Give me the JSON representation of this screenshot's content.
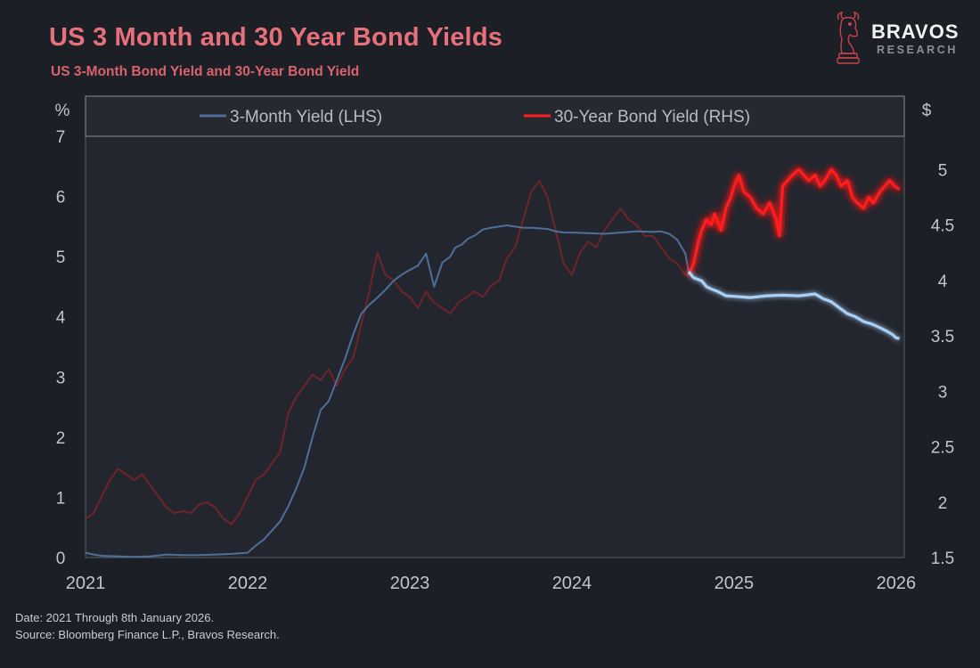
{
  "header": {
    "title": "US 3 Month and 30 Year Bond Yields",
    "subtitle": "US 3-Month Bond Yield and 30-Year Bond Yield"
  },
  "brand": {
    "name": "BRAVOS",
    "tagline": "RESEARCH",
    "logo_icon": "bull-chess-knight-icon"
  },
  "footer": {
    "date_line": "Date: 2021 Through 8th January 2026.",
    "source_line": "Source: Bloomberg Finance L.P., Bravos Research."
  },
  "colors": {
    "background": "#1c1f25",
    "plot_background": "#23262e",
    "three_month": "#4e6f9a",
    "three_month_highlight": "#a9d1f5",
    "thirty_year": "#6e2428",
    "thirty_year_highlight": "#ff1d1d",
    "title": "#e8707a"
  },
  "chart_data": {
    "type": "line",
    "title": "US 3 Month and 30 Year Bond Yields",
    "highlight_from": 2024.72,
    "x_axis": {
      "range": [
        2021,
        2026.05
      ],
      "ticks": [
        "2021",
        "2022",
        "2023",
        "2024",
        "2025",
        "2026"
      ]
    },
    "y_left": {
      "label": "%",
      "range": [
        0,
        7
      ],
      "ticks": [
        "0",
        "1",
        "2",
        "3",
        "4",
        "5",
        "6",
        "7"
      ]
    },
    "y_right": {
      "label": "$",
      "range": [
        1.5,
        5.3
      ],
      "ticks": [
        "1.5",
        "2",
        "2.5",
        "3",
        "3.5",
        "4",
        "4.5",
        "5"
      ]
    },
    "legend": {
      "position": "top",
      "entries": [
        "3-Month Yield (LHS)",
        "30-Year Bond Yield (RHS)"
      ]
    },
    "series": [
      {
        "name": "3-Month Yield (LHS)",
        "axis": "left",
        "x": [
          2021.0,
          2021.05,
          2021.1,
          2021.2,
          2021.3,
          2021.4,
          2021.5,
          2021.6,
          2021.7,
          2021.8,
          2021.9,
          2022.0,
          2022.05,
          2022.1,
          2022.15,
          2022.2,
          2022.25,
          2022.3,
          2022.35,
          2022.4,
          2022.45,
          2022.5,
          2022.55,
          2022.6,
          2022.65,
          2022.7,
          2022.75,
          2022.8,
          2022.85,
          2022.9,
          2022.95,
          2023.0,
          2023.05,
          2023.1,
          2023.15,
          2023.2,
          2023.25,
          2023.28,
          2023.32,
          2023.36,
          2023.4,
          2023.45,
          2023.5,
          2023.55,
          2023.6,
          2023.65,
          2023.7,
          2023.75,
          2023.8,
          2023.85,
          2023.9,
          2023.95,
          2024.0,
          2024.1,
          2024.2,
          2024.3,
          2024.4,
          2024.5,
          2024.55,
          2024.6,
          2024.65,
          2024.7,
          2024.72,
          2024.75,
          2024.8,
          2024.83,
          2024.87,
          2024.9,
          2024.95,
          2025.0,
          2025.1,
          2025.2,
          2025.3,
          2025.4,
          2025.5,
          2025.55,
          2025.6,
          2025.65,
          2025.7,
          2025.75,
          2025.8,
          2025.85,
          2025.9,
          2025.95,
          2025.98,
          2026.0,
          2026.02
        ],
        "values": [
          0.08,
          0.05,
          0.03,
          0.02,
          0.01,
          0.02,
          0.05,
          0.04,
          0.04,
          0.05,
          0.06,
          0.08,
          0.2,
          0.3,
          0.45,
          0.6,
          0.85,
          1.15,
          1.5,
          2.0,
          2.45,
          2.6,
          2.95,
          3.3,
          3.7,
          4.05,
          4.2,
          4.32,
          4.45,
          4.6,
          4.7,
          4.78,
          4.85,
          5.05,
          4.5,
          4.9,
          5.0,
          5.15,
          5.2,
          5.3,
          5.35,
          5.45,
          5.48,
          5.5,
          5.52,
          5.5,
          5.48,
          5.48,
          5.47,
          5.46,
          5.42,
          5.4,
          5.4,
          5.39,
          5.38,
          5.4,
          5.42,
          5.41,
          5.42,
          5.38,
          5.28,
          5.05,
          4.75,
          4.65,
          4.6,
          4.5,
          4.45,
          4.42,
          4.35,
          4.34,
          4.32,
          4.35,
          4.36,
          4.35,
          4.38,
          4.3,
          4.25,
          4.15,
          4.05,
          4.0,
          3.92,
          3.88,
          3.82,
          3.75,
          3.7,
          3.65,
          3.64
        ]
      },
      {
        "name": "30-Year Bond Yield (RHS)",
        "axis": "right",
        "x": [
          2021.0,
          2021.05,
          2021.1,
          2021.15,
          2021.2,
          2021.25,
          2021.3,
          2021.35,
          2021.4,
          2021.45,
          2021.5,
          2021.55,
          2021.6,
          2021.65,
          2021.7,
          2021.75,
          2021.8,
          2021.85,
          2021.9,
          2021.95,
          2022.0,
          2022.05,
          2022.1,
          2022.15,
          2022.2,
          2022.25,
          2022.3,
          2022.35,
          2022.4,
          2022.45,
          2022.5,
          2022.55,
          2022.6,
          2022.65,
          2022.7,
          2022.75,
          2022.8,
          2022.85,
          2022.9,
          2022.95,
          2023.0,
          2023.05,
          2023.1,
          2023.15,
          2023.2,
          2023.25,
          2023.3,
          2023.35,
          2023.4,
          2023.45,
          2023.5,
          2023.55,
          2023.6,
          2023.65,
          2023.7,
          2023.75,
          2023.8,
          2023.85,
          2023.9,
          2023.95,
          2024.0,
          2024.05,
          2024.1,
          2024.15,
          2024.2,
          2024.25,
          2024.3,
          2024.35,
          2024.4,
          2024.45,
          2024.5,
          2024.55,
          2024.6,
          2024.65,
          2024.7,
          2024.72,
          2024.75,
          2024.78,
          2024.8,
          2024.83,
          2024.86,
          2024.88,
          2024.92,
          2024.95,
          2024.98,
          2025.0,
          2025.03,
          2025.06,
          2025.1,
          2025.14,
          2025.18,
          2025.22,
          2025.26,
          2025.28,
          2025.3,
          2025.33,
          2025.36,
          2025.4,
          2025.43,
          2025.46,
          2025.5,
          2025.53,
          2025.56,
          2025.6,
          2025.63,
          2025.66,
          2025.7,
          2025.73,
          2025.76,
          2025.8,
          2025.83,
          2025.86,
          2025.9,
          2025.93,
          2025.96,
          2025.99,
          2026.02
        ],
        "values": [
          1.85,
          1.9,
          2.05,
          2.2,
          2.3,
          2.25,
          2.2,
          2.25,
          2.15,
          2.05,
          1.95,
          1.9,
          1.92,
          1.9,
          1.98,
          2.0,
          1.95,
          1.85,
          1.8,
          1.9,
          2.05,
          2.2,
          2.25,
          2.35,
          2.45,
          2.8,
          2.95,
          3.05,
          3.15,
          3.1,
          3.2,
          3.05,
          3.2,
          3.3,
          3.6,
          3.9,
          4.25,
          4.05,
          4.0,
          3.9,
          3.85,
          3.75,
          3.9,
          3.8,
          3.75,
          3.7,
          3.8,
          3.85,
          3.9,
          3.85,
          3.95,
          4.0,
          4.2,
          4.3,
          4.55,
          4.8,
          4.9,
          4.75,
          4.45,
          4.15,
          4.05,
          4.25,
          4.35,
          4.3,
          4.45,
          4.55,
          4.65,
          4.55,
          4.5,
          4.4,
          4.4,
          4.3,
          4.2,
          4.15,
          4.05,
          4.05,
          4.15,
          4.35,
          4.45,
          4.55,
          4.5,
          4.6,
          4.45,
          4.65,
          4.75,
          4.85,
          4.95,
          4.8,
          4.75,
          4.65,
          4.6,
          4.7,
          4.55,
          4.4,
          4.85,
          4.9,
          4.95,
          5.0,
          4.95,
          4.9,
          4.95,
          4.85,
          4.9,
          5.0,
          4.95,
          4.85,
          4.9,
          4.75,
          4.7,
          4.65,
          4.75,
          4.7,
          4.8,
          4.85,
          4.9,
          4.85,
          4.82
        ]
      }
    ]
  }
}
